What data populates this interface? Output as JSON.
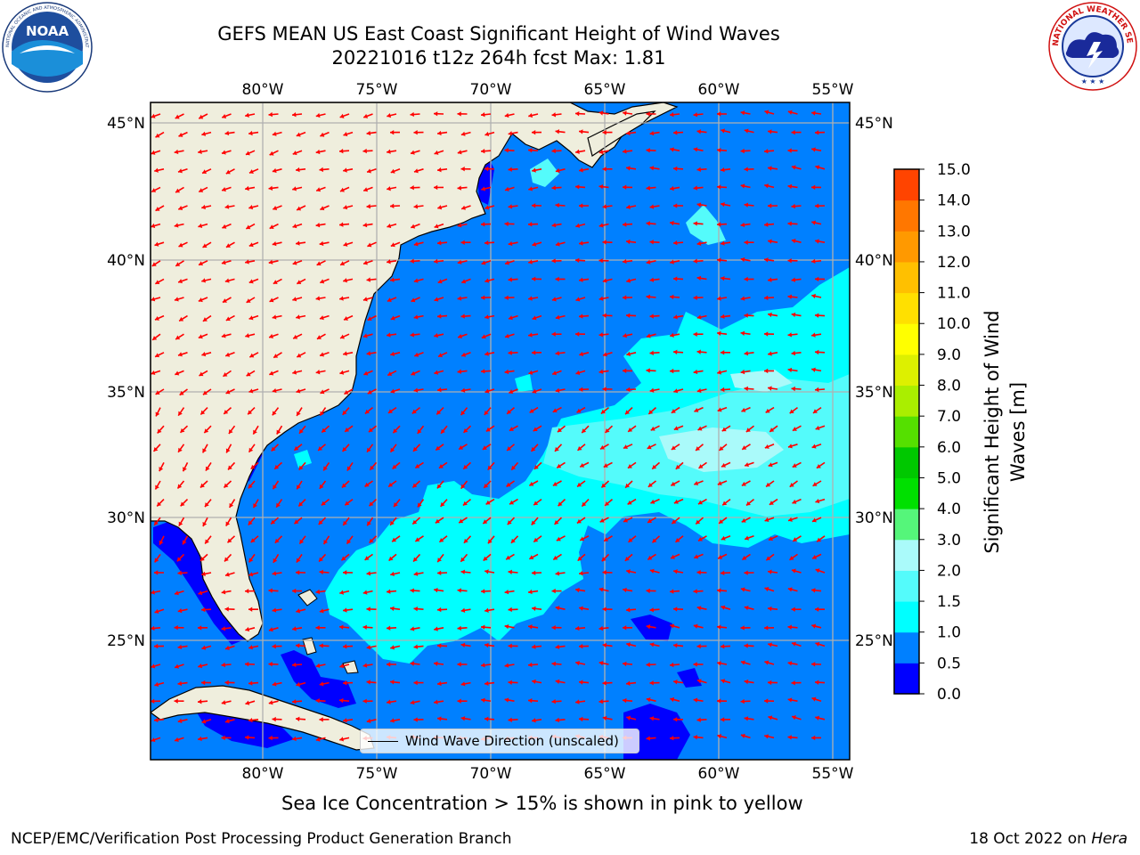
{
  "header": {
    "title_line1": "GEFS MEAN US East Coast Significant Height of Wind Waves",
    "title_line2": "20221016 t12z 264h fcst   Max: 1.81"
  },
  "logos": {
    "noaa": "NOAA",
    "noaa_ring_text": "NATIONAL OCEANIC AND ATMOSPHERIC ADMINISTRATION · U.S. DEPARTMENT OF COMMERCE",
    "nws_ring_text": "NATIONAL WEATHER SERVICE"
  },
  "map": {
    "lon_ticks": [
      "80°W",
      "75°W",
      "70°W",
      "65°W",
      "60°W",
      "55°W"
    ],
    "lat_ticks": [
      "45°N",
      "40°N",
      "35°N",
      "30°N",
      "25°N"
    ],
    "colors": {
      "land": "#efeedd",
      "wave_0_0.5": "#0000ff",
      "wave_0.5_1.0": "#0080ff",
      "wave_1.0_1.5": "#00ffff",
      "wave_1.5_2.0": "#54fbfb",
      "wave_2.0_3.0": "#aafafa",
      "arrow": "#ff0000",
      "grid": "#b0b0b0"
    },
    "arrow_icon": "red-wind-wave-arrow"
  },
  "legend": {
    "label": "Wind Wave Direction (unscaled)"
  },
  "colorbar": {
    "label_line1": "Significant Height of Wind",
    "label_line2": "Waves [m]",
    "ticks": [
      "15.0",
      "14.0",
      "13.0",
      "12.0",
      "11.0",
      "10.0",
      "9.0",
      "8.0",
      "7.0",
      "6.0",
      "5.0",
      "4.0",
      "3.0",
      "2.0",
      "1.5",
      "1.0",
      "0.5",
      "0.0"
    ],
    "colors": [
      "#0000ff",
      "#0080ff",
      "#00ffff",
      "#54fbfb",
      "#aafafa",
      "#55f67a",
      "#00e000",
      "#00c800",
      "#55e000",
      "#aaee00",
      "#ddf000",
      "#ffff00",
      "#ffe000",
      "#ffc000",
      "#ff9900",
      "#ff7700",
      "#ff4400",
      "#ff2a00",
      "#ff0000"
    ]
  },
  "footer": {
    "ice_note": "Sea Ice Concentration > 15% is shown in pink to yellow",
    "credit": "NCEP/EMC/Verification Post Processing Product Generation Branch",
    "date": "18 Oct 2022 on",
    "host": "Hera"
  }
}
